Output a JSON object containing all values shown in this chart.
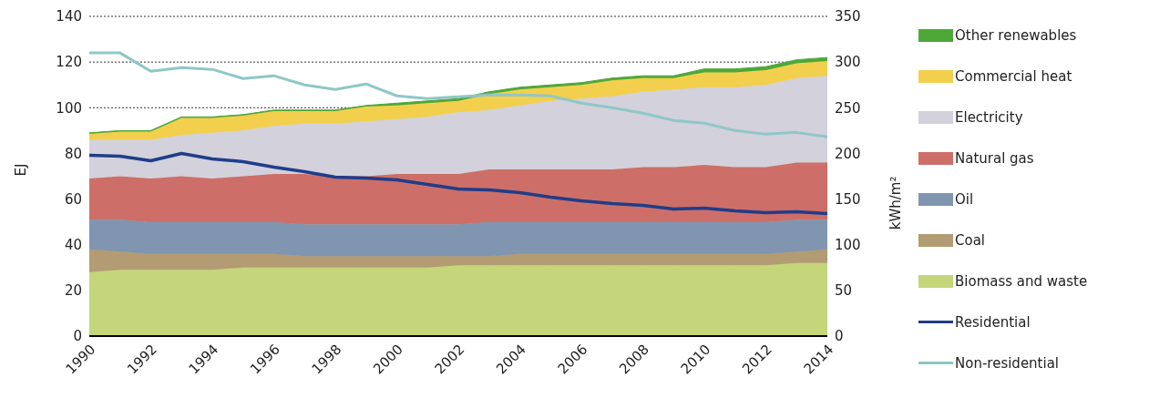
{
  "chart_data": {
    "type": "area",
    "stacked": true,
    "x": [
      1990,
      1991,
      1992,
      1993,
      1994,
      1995,
      1996,
      1997,
      1998,
      1999,
      2000,
      2001,
      2002,
      2003,
      2004,
      2005,
      2006,
      2007,
      2008,
      2009,
      2010,
      2011,
      2012,
      2013,
      2014
    ],
    "xlim": [
      1990,
      2014
    ],
    "xticks": [
      1990,
      1992,
      1994,
      1996,
      1998,
      2000,
      2002,
      2004,
      2006,
      2008,
      2010,
      2012,
      2014
    ],
    "ylim": [
      0,
      140
    ],
    "yticks": [
      0,
      20,
      40,
      60,
      80,
      100,
      120,
      140
    ],
    "ylabel": "EJ",
    "y2lim": [
      0,
      350
    ],
    "y2ticks": [
      0,
      50,
      100,
      150,
      200,
      250,
      300,
      350
    ],
    "y2label": "kWh/m²",
    "grid": "y",
    "legend": "right",
    "marker": "none",
    "series": [
      {
        "name": "Biomass and waste",
        "color": "#c4d57a",
        "values": [
          28,
          29,
          29,
          29,
          29,
          30,
          30,
          30,
          30,
          30,
          30,
          30,
          31,
          31,
          31,
          31,
          31,
          31,
          31,
          31,
          31,
          31,
          31,
          32,
          32
        ]
      },
      {
        "name": "Coal",
        "color": "#b39b73",
        "values": [
          10,
          8,
          7,
          7,
          7,
          6,
          6,
          5,
          5,
          5,
          5,
          5,
          4,
          4,
          5,
          5,
          5,
          5,
          5,
          5,
          5,
          5,
          5,
          5,
          6
        ]
      },
      {
        "name": "Oil",
        "color": "#7f95b0",
        "values": [
          13,
          14,
          14,
          14,
          14,
          14,
          14,
          14,
          14,
          14,
          14,
          14,
          14,
          15,
          14,
          14,
          14,
          14,
          14,
          14,
          14,
          14,
          14,
          14,
          13
        ]
      },
      {
        "name": "Natural gas",
        "color": "#cd6f68",
        "values": [
          18,
          19,
          19,
          20,
          19,
          20,
          21,
          22,
          21,
          21,
          22,
          22,
          22,
          23,
          23,
          23,
          23,
          23,
          24,
          24,
          25,
          24,
          24,
          25,
          25
        ]
      },
      {
        "name": "Electricity",
        "color": "#d3d1db",
        "values": [
          17,
          16,
          17,
          18,
          20,
          20,
          21,
          22,
          23,
          24,
          24,
          25,
          27,
          26,
          28,
          30,
          31,
          32,
          33,
          34,
          34,
          35,
          36,
          37,
          38
        ]
      },
      {
        "name": "Commercial heat",
        "color": "#f2d04e",
        "values": [
          2.5,
          3.5,
          3.5,
          7.5,
          6.5,
          6.5,
          6.5,
          5.5,
          5.5,
          6.5,
          6,
          6,
          5,
          7,
          7,
          6,
          6,
          7,
          6,
          5,
          6.5,
          6.5,
          6.5,
          6.5,
          6.5
        ]
      },
      {
        "name": "Other renewables",
        "color": "#4ea838",
        "values": [
          0.5,
          0.5,
          0.5,
          0.5,
          0.5,
          0.5,
          0.5,
          0.5,
          0.5,
          0.5,
          1,
          1,
          1,
          1,
          1,
          1,
          1,
          1,
          1,
          1,
          1.5,
          1.5,
          1.5,
          1.5,
          1.5
        ]
      },
      {
        "name": "Residential",
        "type": "line",
        "axis": "y2",
        "color": "#1f3d8a",
        "values": [
          198,
          197,
          192,
          200,
          194,
          191,
          185,
          180,
          174,
          173,
          171,
          166,
          161,
          160,
          157,
          152,
          148,
          145,
          143,
          139,
          140,
          137,
          135,
          136,
          134
        ]
      },
      {
        "name": "Non-residential",
        "type": "line",
        "axis": "y2",
        "color": "#8fc7c7",
        "values": [
          310,
          310,
          290,
          294,
          292,
          282,
          285,
          275,
          270,
          276,
          263,
          260,
          262,
          264,
          264,
          263,
          255,
          250,
          244,
          236,
          233,
          225,
          221,
          223,
          218
        ]
      }
    ]
  }
}
